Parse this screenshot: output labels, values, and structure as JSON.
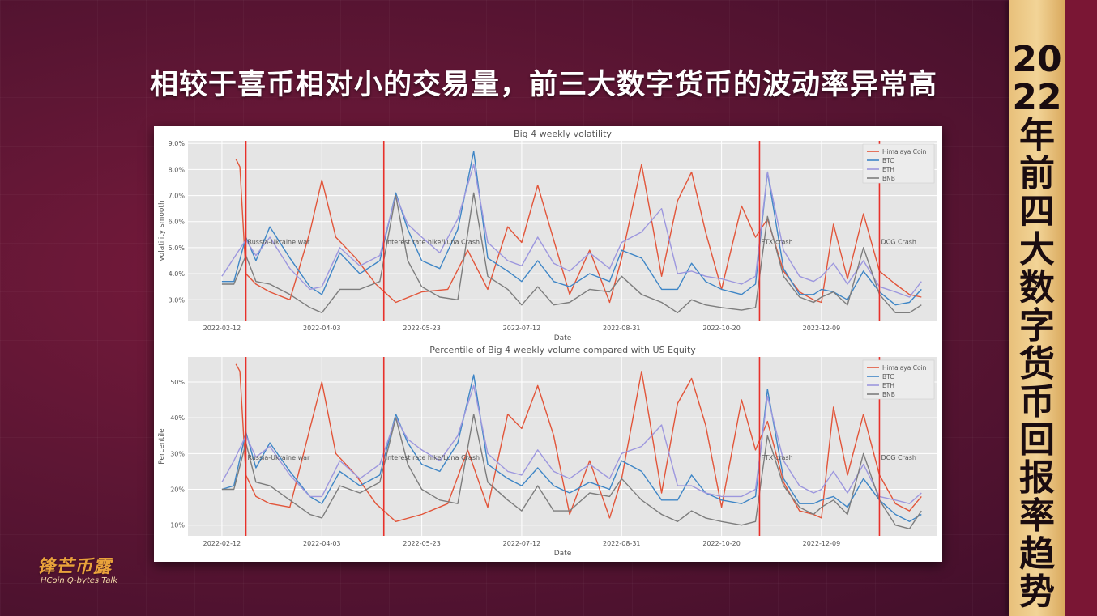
{
  "headline": "相较于喜币相对小的交易量，前三大数字货币的波动率异常高",
  "side_banner": "2022年前四大数字货币回报率趋势",
  "logo": {
    "main": "锋芒币露",
    "sub": "HCoin Q-bytes Talk"
  },
  "colors": {
    "Himalaya Coin": "#e2553a",
    "BTC": "#3f86c6",
    "ETH": "#9d97de",
    "BNB": "#7d7d7d",
    "event_line": "#e8302a",
    "plot_bg": "#e5e5e5"
  },
  "chart_data": [
    {
      "type": "line",
      "title": "Big 4 weekly volatility",
      "xlabel": "Date",
      "ylabel": "volatility smooth",
      "x_ticks": [
        "2022-02-12",
        "2022-04-03",
        "2022-05-23",
        "2022-07-12",
        "2022-08-31",
        "2022-10-20",
        "2022-12-09"
      ],
      "y_ticks": [
        "3.0%",
        "4.0%",
        "5.0%",
        "6.0%",
        "7.0%",
        "8.0%",
        "9.0%"
      ],
      "ylim": [
        2.2,
        9.1
      ],
      "grid": true,
      "legend": "top-right",
      "events": [
        {
          "date": "2022-02-24",
          "label": "Russia-Ukraine war"
        },
        {
          "date": "2022-05-04",
          "label": "Interest rate hike/Luna Crash"
        },
        {
          "date": "2022-11-08",
          "label": "FTX crash"
        },
        {
          "date": "2023-01-07",
          "label": "DCG Crash"
        }
      ],
      "series": [
        {
          "name": "Himalaya Coin",
          "x": [
            "2022-02-19",
            "2022-02-21",
            "2022-02-24",
            "2022-03-01",
            "2022-03-08",
            "2022-03-18",
            "2022-03-28",
            "2022-04-03",
            "2022-04-10",
            "2022-04-20",
            "2022-04-30",
            "2022-05-10",
            "2022-05-23",
            "2022-06-05",
            "2022-06-15",
            "2022-06-25",
            "2022-07-05",
            "2022-07-12",
            "2022-07-20",
            "2022-07-28",
            "2022-08-05",
            "2022-08-15",
            "2022-08-25",
            "2022-08-31",
            "2022-09-10",
            "2022-09-20",
            "2022-09-28",
            "2022-10-05",
            "2022-10-12",
            "2022-10-20",
            "2022-10-30",
            "2022-11-06",
            "2022-11-12",
            "2022-11-20",
            "2022-11-28",
            "2022-12-05",
            "2022-12-09",
            "2022-12-15",
            "2022-12-22",
            "2022-12-30",
            "2023-01-07",
            "2023-01-15",
            "2023-01-22",
            "2023-01-28"
          ],
          "y": [
            8.4,
            8.1,
            4.0,
            3.6,
            3.3,
            3.0,
            5.6,
            7.6,
            5.4,
            4.6,
            3.6,
            2.9,
            3.3,
            3.4,
            4.9,
            3.4,
            5.8,
            5.2,
            7.4,
            5.3,
            3.2,
            4.9,
            2.9,
            4.6,
            8.2,
            3.9,
            6.8,
            7.9,
            5.6,
            3.4,
            6.6,
            5.4,
            6.1,
            4.1,
            3.3,
            3.0,
            2.9,
            5.9,
            3.8,
            6.3,
            4.1,
            3.6,
            3.2,
            3.1
          ]
        },
        {
          "name": "BTC",
          "x": [
            "2022-02-12",
            "2022-02-18",
            "2022-02-24",
            "2022-03-01",
            "2022-03-08",
            "2022-03-18",
            "2022-03-28",
            "2022-04-03",
            "2022-04-12",
            "2022-04-22",
            "2022-05-02",
            "2022-05-10",
            "2022-05-16",
            "2022-05-23",
            "2022-06-01",
            "2022-06-10",
            "2022-06-18",
            "2022-06-25",
            "2022-07-05",
            "2022-07-12",
            "2022-07-20",
            "2022-07-28",
            "2022-08-05",
            "2022-08-15",
            "2022-08-25",
            "2022-08-31",
            "2022-09-10",
            "2022-09-20",
            "2022-09-28",
            "2022-10-05",
            "2022-10-12",
            "2022-10-20",
            "2022-10-30",
            "2022-11-06",
            "2022-11-12",
            "2022-11-20",
            "2022-11-28",
            "2022-12-05",
            "2022-12-09",
            "2022-12-15",
            "2022-12-22",
            "2022-12-30",
            "2023-01-07",
            "2023-01-15",
            "2023-01-22",
            "2023-01-28"
          ],
          "y": [
            3.7,
            3.7,
            5.4,
            4.5,
            5.8,
            4.6,
            3.5,
            3.2,
            4.8,
            4.0,
            4.5,
            7.1,
            5.7,
            4.5,
            4.2,
            5.7,
            8.7,
            4.6,
            4.1,
            3.7,
            4.5,
            3.7,
            3.5,
            4.0,
            3.7,
            4.9,
            4.6,
            3.4,
            3.4,
            4.4,
            3.7,
            3.4,
            3.2,
            3.6,
            7.9,
            4.2,
            3.2,
            3.2,
            3.4,
            3.3,
            3.0,
            4.1,
            3.3,
            2.8,
            2.9,
            3.4
          ]
        },
        {
          "name": "ETH",
          "x": [
            "2022-02-12",
            "2022-02-18",
            "2022-02-24",
            "2022-03-01",
            "2022-03-08",
            "2022-03-18",
            "2022-03-28",
            "2022-04-03",
            "2022-04-12",
            "2022-04-22",
            "2022-05-02",
            "2022-05-10",
            "2022-05-16",
            "2022-05-23",
            "2022-06-01",
            "2022-06-10",
            "2022-06-18",
            "2022-06-25",
            "2022-07-05",
            "2022-07-12",
            "2022-07-20",
            "2022-07-28",
            "2022-08-05",
            "2022-08-15",
            "2022-08-25",
            "2022-08-31",
            "2022-09-10",
            "2022-09-20",
            "2022-09-28",
            "2022-10-05",
            "2022-10-12",
            "2022-10-20",
            "2022-10-30",
            "2022-11-06",
            "2022-11-12",
            "2022-11-20",
            "2022-11-28",
            "2022-12-05",
            "2022-12-09",
            "2022-12-15",
            "2022-12-22",
            "2022-12-30",
            "2023-01-07",
            "2023-01-15",
            "2023-01-22",
            "2023-01-28"
          ],
          "y": [
            3.9,
            4.6,
            5.3,
            4.7,
            5.4,
            4.2,
            3.4,
            3.5,
            5.0,
            4.3,
            4.7,
            7.0,
            5.9,
            5.4,
            4.8,
            6.1,
            8.2,
            5.2,
            4.5,
            4.3,
            5.4,
            4.4,
            4.1,
            4.8,
            4.2,
            5.2,
            5.6,
            6.5,
            4.0,
            4.1,
            3.9,
            3.8,
            3.6,
            3.9,
            7.9,
            4.9,
            3.9,
            3.7,
            3.9,
            4.4,
            3.6,
            4.5,
            3.5,
            3.3,
            3.1,
            3.7
          ]
        },
        {
          "name": "BNB",
          "x": [
            "2022-02-12",
            "2022-02-18",
            "2022-02-24",
            "2022-03-01",
            "2022-03-08",
            "2022-03-18",
            "2022-03-28",
            "2022-04-03",
            "2022-04-12",
            "2022-04-22",
            "2022-05-02",
            "2022-05-10",
            "2022-05-16",
            "2022-05-23",
            "2022-06-01",
            "2022-06-10",
            "2022-06-18",
            "2022-06-25",
            "2022-07-05",
            "2022-07-12",
            "2022-07-20",
            "2022-07-28",
            "2022-08-05",
            "2022-08-15",
            "2022-08-25",
            "2022-08-31",
            "2022-09-10",
            "2022-09-20",
            "2022-09-28",
            "2022-10-05",
            "2022-10-12",
            "2022-10-20",
            "2022-10-30",
            "2022-11-06",
            "2022-11-12",
            "2022-11-20",
            "2022-11-28",
            "2022-12-05",
            "2022-12-09",
            "2022-12-15",
            "2022-12-22",
            "2022-12-30",
            "2023-01-07",
            "2023-01-15",
            "2023-01-22",
            "2023-01-28"
          ],
          "y": [
            3.6,
            3.6,
            4.7,
            3.7,
            3.6,
            3.2,
            2.7,
            2.5,
            3.4,
            3.4,
            3.7,
            7.0,
            4.5,
            3.5,
            3.1,
            3.0,
            7.1,
            3.9,
            3.4,
            2.8,
            3.5,
            2.8,
            2.9,
            3.4,
            3.3,
            3.9,
            3.2,
            2.9,
            2.5,
            3.0,
            2.8,
            2.7,
            2.6,
            2.7,
            6.2,
            3.9,
            3.1,
            2.9,
            3.1,
            3.3,
            2.8,
            5.0,
            3.2,
            2.5,
            2.5,
            2.8
          ]
        }
      ]
    },
    {
      "type": "line",
      "title": "Percentile of Big 4 weekly volume compared with US Equity",
      "xlabel": "Date",
      "ylabel": "Percentile",
      "x_ticks": [
        "2022-02-12",
        "2022-04-03",
        "2022-05-23",
        "2022-07-12",
        "2022-08-31",
        "2022-10-20",
        "2022-12-09"
      ],
      "y_ticks": [
        "10%",
        "20%",
        "30%",
        "40%",
        "50%"
      ],
      "ylim": [
        7,
        57
      ],
      "grid": true,
      "legend": "top-right",
      "events": [
        {
          "date": "2022-02-24",
          "label": "Russia-Ukraine war"
        },
        {
          "date": "2022-05-04",
          "label": "Interest rate hike/Luna Crash"
        },
        {
          "date": "2022-11-08",
          "label": "FTX crash"
        },
        {
          "date": "2023-01-07",
          "label": "DCG Crash"
        }
      ],
      "series": [
        {
          "name": "Himalaya Coin",
          "x": [
            "2022-02-19",
            "2022-02-21",
            "2022-02-24",
            "2022-03-01",
            "2022-03-08",
            "2022-03-18",
            "2022-03-28",
            "2022-04-03",
            "2022-04-10",
            "2022-04-20",
            "2022-04-30",
            "2022-05-10",
            "2022-05-23",
            "2022-06-05",
            "2022-06-15",
            "2022-06-25",
            "2022-07-05",
            "2022-07-12",
            "2022-07-20",
            "2022-07-28",
            "2022-08-05",
            "2022-08-15",
            "2022-08-25",
            "2022-08-31",
            "2022-09-10",
            "2022-09-20",
            "2022-09-28",
            "2022-10-05",
            "2022-10-12",
            "2022-10-20",
            "2022-10-30",
            "2022-11-06",
            "2022-11-12",
            "2022-11-20",
            "2022-11-28",
            "2022-12-05",
            "2022-12-09",
            "2022-12-15",
            "2022-12-22",
            "2022-12-30",
            "2023-01-07",
            "2023-01-15",
            "2023-01-22",
            "2023-01-28"
          ],
          "y": [
            55,
            53,
            24,
            18,
            16,
            15,
            37,
            50,
            30,
            24,
            16,
            11,
            13,
            16,
            31,
            15,
            41,
            37,
            49,
            35,
            13,
            28,
            12,
            23,
            53,
            19,
            44,
            51,
            38,
            15,
            45,
            31,
            39,
            22,
            14,
            13,
            12,
            43,
            24,
            41,
            24,
            16,
            14,
            18
          ]
        },
        {
          "name": "BTC",
          "x": [
            "2022-02-12",
            "2022-02-18",
            "2022-02-24",
            "2022-03-01",
            "2022-03-08",
            "2022-03-18",
            "2022-03-28",
            "2022-04-03",
            "2022-04-12",
            "2022-04-22",
            "2022-05-02",
            "2022-05-10",
            "2022-05-16",
            "2022-05-23",
            "2022-06-01",
            "2022-06-10",
            "2022-06-18",
            "2022-06-25",
            "2022-07-05",
            "2022-07-12",
            "2022-07-20",
            "2022-07-28",
            "2022-08-05",
            "2022-08-15",
            "2022-08-25",
            "2022-08-31",
            "2022-09-10",
            "2022-09-20",
            "2022-09-28",
            "2022-10-05",
            "2022-10-12",
            "2022-10-20",
            "2022-10-30",
            "2022-11-06",
            "2022-11-12",
            "2022-11-20",
            "2022-11-28",
            "2022-12-05",
            "2022-12-09",
            "2022-12-15",
            "2022-12-22",
            "2022-12-30",
            "2023-01-07",
            "2023-01-15",
            "2023-01-22",
            "2023-01-28"
          ],
          "y": [
            20,
            21,
            36,
            26,
            33,
            25,
            18,
            16,
            25,
            21,
            24,
            41,
            33,
            27,
            25,
            33,
            52,
            27,
            23,
            21,
            26,
            21,
            19,
            22,
            20,
            28,
            25,
            17,
            17,
            24,
            19,
            17,
            16,
            18,
            48,
            23,
            16,
            16,
            17,
            18,
            15,
            23,
            17,
            13,
            11,
            13
          ]
        },
        {
          "name": "ETH",
          "x": [
            "2022-02-12",
            "2022-02-18",
            "2022-02-24",
            "2022-03-01",
            "2022-03-08",
            "2022-03-18",
            "2022-03-28",
            "2022-04-03",
            "2022-04-12",
            "2022-04-22",
            "2022-05-02",
            "2022-05-10",
            "2022-05-16",
            "2022-05-23",
            "2022-06-01",
            "2022-06-10",
            "2022-06-18",
            "2022-06-25",
            "2022-07-05",
            "2022-07-12",
            "2022-07-20",
            "2022-07-28",
            "2022-08-05",
            "2022-08-15",
            "2022-08-25",
            "2022-08-31",
            "2022-09-10",
            "2022-09-20",
            "2022-09-28",
            "2022-10-05",
            "2022-10-12",
            "2022-10-20",
            "2022-10-30",
            "2022-11-06",
            "2022-11-12",
            "2022-11-20",
            "2022-11-28",
            "2022-12-05",
            "2022-12-09",
            "2022-12-15",
            "2022-12-22",
            "2022-12-30",
            "2023-01-07",
            "2023-01-15",
            "2023-01-22",
            "2023-01-28"
          ],
          "y": [
            22,
            28,
            35,
            29,
            32,
            24,
            18,
            18,
            28,
            23,
            27,
            40,
            34,
            31,
            28,
            35,
            49,
            30,
            25,
            24,
            31,
            25,
            23,
            27,
            23,
            30,
            32,
            38,
            21,
            21,
            19,
            18,
            18,
            20,
            46,
            28,
            21,
            19,
            20,
            25,
            19,
            27,
            18,
            17,
            16,
            19
          ]
        },
        {
          "name": "BNB",
          "x": [
            "2022-02-12",
            "2022-02-18",
            "2022-02-24",
            "2022-03-01",
            "2022-03-08",
            "2022-03-18",
            "2022-03-28",
            "2022-04-03",
            "2022-04-12",
            "2022-04-22",
            "2022-05-02",
            "2022-05-10",
            "2022-05-16",
            "2022-05-23",
            "2022-06-01",
            "2022-06-10",
            "2022-06-18",
            "2022-06-25",
            "2022-07-05",
            "2022-07-12",
            "2022-07-20",
            "2022-07-28",
            "2022-08-05",
            "2022-08-15",
            "2022-08-25",
            "2022-08-31",
            "2022-09-10",
            "2022-09-20",
            "2022-09-28",
            "2022-10-05",
            "2022-10-12",
            "2022-10-20",
            "2022-10-30",
            "2022-11-06",
            "2022-11-12",
            "2022-11-20",
            "2022-11-28",
            "2022-12-05",
            "2022-12-09",
            "2022-12-15",
            "2022-12-22",
            "2022-12-30",
            "2023-01-07",
            "2023-01-15",
            "2023-01-22",
            "2023-01-28"
          ],
          "y": [
            20,
            20,
            33,
            22,
            21,
            17,
            13,
            12,
            21,
            19,
            22,
            40,
            27,
            20,
            17,
            16,
            41,
            22,
            17,
            14,
            21,
            14,
            14,
            19,
            18,
            23,
            17,
            13,
            11,
            14,
            12,
            11,
            10,
            11,
            35,
            21,
            15,
            13,
            15,
            17,
            13,
            30,
            17,
            10,
            9,
            14
          ]
        }
      ]
    }
  ]
}
